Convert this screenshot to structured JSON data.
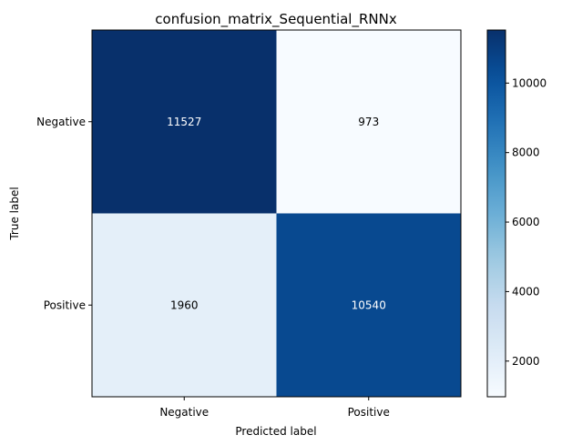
{
  "chart_data": {
    "type": "heatmap",
    "title": "confusion_matrix_Sequential_RNNx",
    "xlabel": "Predicted label",
    "ylabel": "True label",
    "x_categories": [
      "Negative",
      "Positive"
    ],
    "y_categories": [
      "Negative",
      "Positive"
    ],
    "values": [
      [
        11527,
        973
      ],
      [
        1960,
        10540
      ]
    ],
    "colormap": "Blues",
    "color_range": [
      973,
      11527
    ],
    "colorbar_ticks": [
      2000,
      4000,
      6000,
      8000,
      10000
    ],
    "colorbar_tick_labels": [
      "2000",
      "4000",
      "6000",
      "8000",
      "10000"
    ],
    "grid": false
  }
}
